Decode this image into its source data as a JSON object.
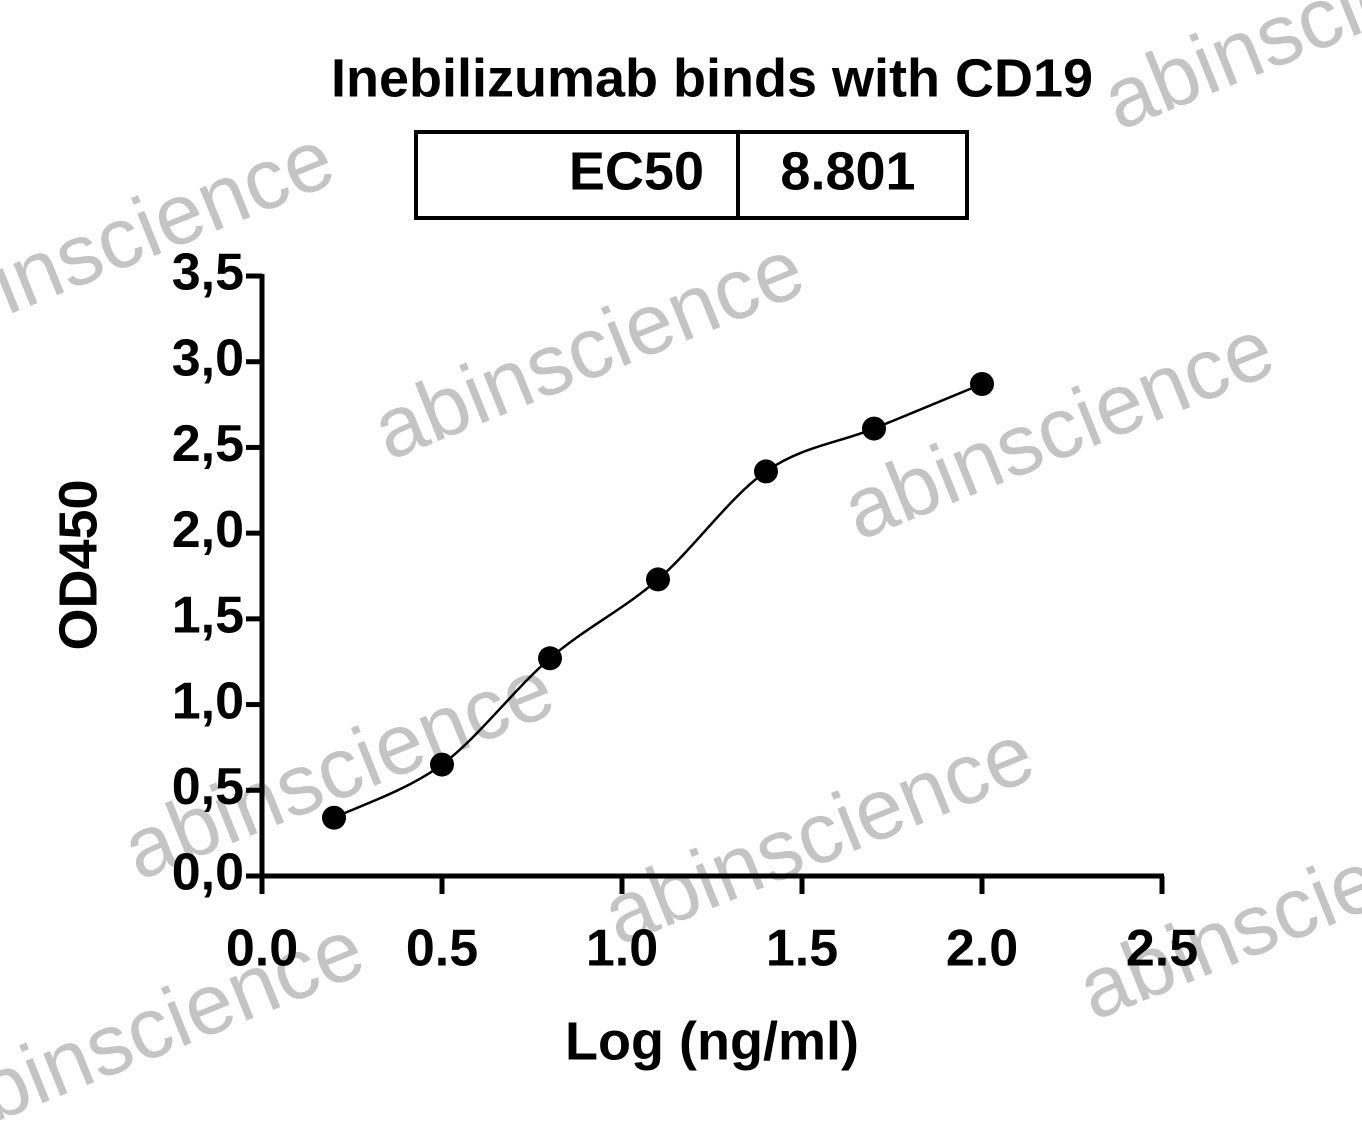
{
  "chart_data": {
    "type": "scatter",
    "title": "Inebilizumab binds with CD19",
    "ec50_label": "EC50",
    "ec50_value": "8.801",
    "watermark": "abinscience",
    "xlabel": "Log (ng/ml)",
    "ylabel": "OD450",
    "series": [
      {
        "name": "Inebilizumab",
        "color": "#000000",
        "x": [
          0.2,
          0.5,
          0.8,
          1.1,
          1.4,
          1.7,
          2.0
        ],
        "values": [
          0.34,
          0.65,
          1.27,
          1.73,
          2.36,
          2.61,
          2.87
        ]
      }
    ],
    "xlim": [
      0,
      2.5
    ],
    "xticks": [
      {
        "value": 0,
        "label": "0.0"
      },
      0.5,
      {
        "value": 1,
        "label": "1.0"
      },
      1.5,
      {
        "value": 2,
        "label": "2.0"
      },
      2.5
    ],
    "ylim": [
      0,
      3.5
    ],
    "yticks": [
      {
        "value": 0,
        "label": "0,0"
      },
      {
        "value": 0.5,
        "label": "0,5"
      },
      {
        "value": 1,
        "label": "1,0"
      },
      {
        "value": 1.5,
        "label": "1,5"
      },
      {
        "value": 2,
        "label": "2,0"
      },
      {
        "value": 2.5,
        "label": "2,5"
      },
      {
        "value": 3,
        "label": "3,0"
      },
      {
        "value": 3.5,
        "label": "3,5"
      }
    ]
  }
}
